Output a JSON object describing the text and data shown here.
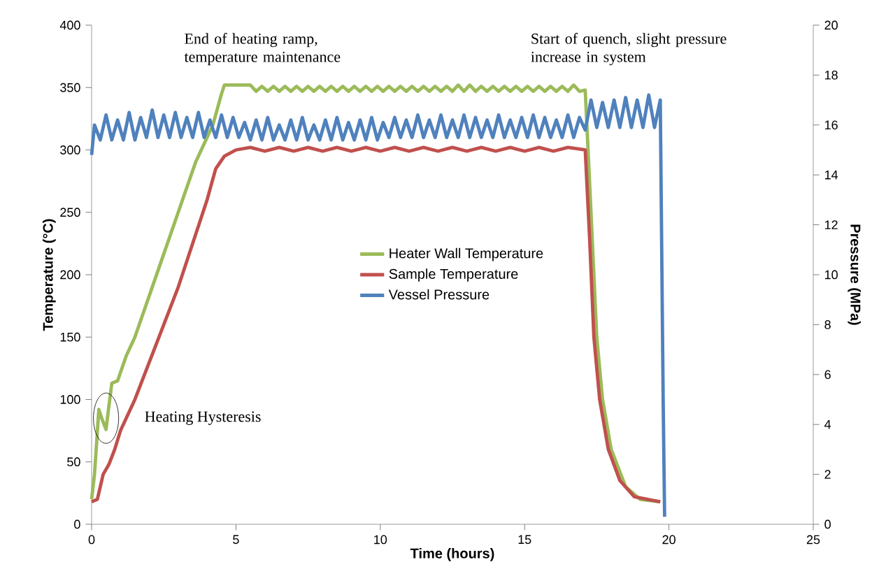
{
  "chart_data": {
    "type": "line",
    "xlabel": "Time (hours)",
    "ylabel": "Temperature (°C)",
    "y2label": "Pressure (MPa)",
    "xlim": [
      0,
      25
    ],
    "xticks": [
      0,
      5,
      10,
      15,
      20,
      25
    ],
    "ylim": [
      0,
      400
    ],
    "yticks": [
      0,
      50,
      100,
      150,
      200,
      250,
      300,
      350,
      400
    ],
    "y2lim": [
      0,
      20
    ],
    "y2ticks": [
      0,
      2,
      4,
      6,
      8,
      10,
      12,
      14,
      16,
      18,
      20
    ],
    "legend": "center",
    "grid": false,
    "marker": "none",
    "line_style": "solid",
    "annotations": [
      "End of heating ramp, temperature maintenance",
      "Start of quench, slight pressure increase in system",
      {
        "text": "Heating Hysteresis",
        "x": 0.5,
        "y": 85
      }
    ],
    "series": [
      {
        "name": "Heater Wall Temperature",
        "color": "#9bbb59",
        "x": [
          0,
          0.1,
          0.25,
          0.35,
          0.5,
          0.6,
          0.7,
          0.9,
          1.2,
          1.5,
          1.8,
          2.1,
          2.4,
          2.7,
          3.0,
          3.3,
          3.6,
          3.9,
          4.2,
          4.5,
          4.6,
          5.5,
          5.7,
          5.9,
          6.1,
          6.3,
          6.5,
          6.7,
          6.9,
          7.1,
          7.3,
          7.5,
          7.7,
          7.9,
          8.1,
          8.3,
          8.5,
          8.7,
          8.9,
          9.1,
          9.3,
          9.5,
          9.7,
          9.9,
          10.1,
          10.3,
          10.5,
          10.7,
          10.9,
          11.1,
          11.3,
          11.5,
          11.7,
          11.9,
          12.1,
          12.3,
          12.5,
          12.7,
          12.9,
          13.1,
          13.3,
          13.5,
          13.7,
          13.9,
          14.1,
          14.3,
          14.5,
          14.7,
          14.9,
          15.1,
          15.3,
          15.5,
          15.7,
          15.9,
          16.1,
          16.3,
          16.5,
          16.7,
          16.9,
          17.1,
          17.3,
          17.5,
          17.7,
          18.0,
          18.5,
          19.0,
          19.7
        ],
        "values": [
          20,
          40,
          92,
          85,
          76,
          95,
          113,
          115,
          135,
          150,
          170,
          190,
          210,
          230,
          250,
          270,
          290,
          305,
          320,
          345,
          352,
          352,
          347,
          351,
          347,
          351,
          347,
          351,
          347,
          351,
          347,
          351,
          347,
          351,
          347,
          351,
          347,
          351,
          347,
          351,
          347,
          351,
          347,
          351,
          347,
          351,
          347,
          351,
          347,
          351,
          347,
          351,
          347,
          351,
          347,
          351,
          347,
          352,
          347,
          352,
          347,
          351,
          347,
          351,
          347,
          351,
          347,
          351,
          347,
          351,
          347,
          351,
          347,
          351,
          347,
          351,
          347,
          352,
          347,
          348,
          250,
          150,
          100,
          60,
          30,
          20,
          18
        ]
      },
      {
        "name": "Sample Temperature",
        "color": "#c0504d",
        "x": [
          0,
          0.2,
          0.4,
          0.6,
          0.8,
          1.0,
          1.5,
          2.0,
          2.5,
          3.0,
          3.5,
          4.0,
          4.3,
          4.6,
          5.0,
          5.5,
          6.0,
          6.5,
          7.0,
          7.5,
          8.0,
          8.5,
          9.0,
          9.5,
          10.0,
          10.5,
          11.0,
          11.5,
          12.0,
          12.5,
          13.0,
          13.5,
          14.0,
          14.5,
          15.0,
          15.5,
          16.0,
          16.5,
          17.1,
          17.25,
          17.4,
          17.6,
          17.9,
          18.3,
          18.8,
          19.7
        ],
        "values": [
          18,
          20,
          40,
          48,
          60,
          75,
          100,
          130,
          160,
          190,
          225,
          260,
          285,
          295,
          300,
          302,
          299,
          302,
          299,
          302,
          299,
          302,
          299,
          302,
          299,
          302,
          299,
          302,
          299,
          302,
          299,
          302,
          299,
          302,
          299,
          302,
          299,
          302,
          300,
          230,
          150,
          100,
          60,
          35,
          22,
          18
        ]
      },
      {
        "name": "Vessel Pressure",
        "color": "#4f81bd",
        "axis": "y2",
        "x": [
          0,
          0.1,
          0.3,
          0.5,
          0.7,
          0.9,
          1.1,
          1.3,
          1.5,
          1.7,
          1.9,
          2.1,
          2.3,
          2.5,
          2.7,
          2.9,
          3.1,
          3.3,
          3.5,
          3.7,
          3.9,
          4.1,
          4.3,
          4.5,
          4.7,
          4.9,
          5.1,
          5.3,
          5.5,
          5.7,
          5.9,
          6.1,
          6.3,
          6.5,
          6.7,
          6.9,
          7.1,
          7.3,
          7.5,
          7.7,
          7.9,
          8.1,
          8.3,
          8.5,
          8.7,
          8.9,
          9.1,
          9.3,
          9.5,
          9.7,
          9.9,
          10.1,
          10.3,
          10.5,
          10.7,
          10.9,
          11.1,
          11.3,
          11.5,
          11.7,
          11.9,
          12.1,
          12.3,
          12.5,
          12.7,
          12.9,
          13.1,
          13.3,
          13.5,
          13.7,
          13.9,
          14.1,
          14.3,
          14.5,
          14.7,
          14.9,
          15.1,
          15.3,
          15.5,
          15.7,
          15.9,
          16.1,
          16.3,
          16.5,
          16.7,
          16.9,
          17.1,
          17.3,
          17.5,
          17.7,
          17.9,
          18.1,
          18.3,
          18.5,
          18.7,
          18.9,
          19.1,
          19.3,
          19.5,
          19.7,
          19.8,
          19.85
        ],
        "values": [
          14.8,
          16.0,
          15.4,
          16.4,
          15.4,
          16.2,
          15.4,
          16.5,
          15.4,
          16.3,
          15.5,
          16.6,
          15.5,
          16.4,
          15.5,
          16.5,
          15.5,
          16.3,
          15.5,
          16.5,
          15.5,
          16.2,
          15.5,
          16.4,
          15.5,
          16.3,
          15.5,
          16.1,
          15.4,
          16.2,
          15.4,
          16.3,
          15.4,
          16.0,
          15.4,
          16.2,
          15.4,
          16.3,
          15.4,
          16.0,
          15.4,
          16.2,
          15.4,
          16.3,
          15.4,
          16.1,
          15.4,
          16.2,
          15.4,
          16.3,
          15.4,
          16.1,
          15.5,
          16.3,
          15.5,
          16.2,
          15.5,
          16.4,
          15.5,
          16.2,
          15.5,
          16.4,
          15.5,
          16.2,
          15.5,
          16.4,
          15.5,
          16.3,
          15.5,
          16.2,
          15.5,
          16.4,
          15.5,
          16.2,
          15.5,
          16.3,
          15.5,
          16.4,
          15.5,
          16.3,
          15.5,
          16.2,
          15.5,
          16.4,
          15.5,
          16.3,
          15.8,
          17.0,
          15.9,
          16.9,
          15.9,
          17.0,
          15.9,
          17.1,
          15.9,
          17.0,
          15.9,
          17.2,
          15.9,
          17.0,
          5.0,
          0.3
        ]
      }
    ]
  }
}
